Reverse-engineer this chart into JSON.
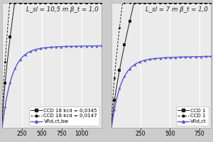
{
  "left": {
    "title": "L_sl = 10,5 m β_t = 1,0",
    "xlim": [
      0,
      1250
    ],
    "xticks": [
      250,
      500,
      750,
      1000
    ],
    "series": [
      {
        "label": "CCD 18 kcd = 0,0345",
        "style": "solid",
        "color": "#1a1a1a",
        "marker": "s"
      },
      {
        "label": "CCD 18 kcd = 0,0147",
        "style": "dashed",
        "color": "#1a1a1a",
        "marker": "o"
      },
      {
        "label": "VRd,ct,bw",
        "style": "solid",
        "color": "#5555cc",
        "marker": "^"
      }
    ]
  },
  "right": {
    "title": "L_sl = 7 m β_t = 1,0",
    "xlim": [
      0,
      850
    ],
    "xticks": [
      250,
      500,
      750
    ],
    "series": [
      {
        "label": "CCD 1",
        "style": "solid",
        "color": "#1a1a1a",
        "marker": "s"
      },
      {
        "label": "CCD 1",
        "style": "dashed",
        "color": "#1a1a1a",
        "marker": "o"
      },
      {
        "label": "VRd,ct",
        "style": "solid",
        "color": "#5555cc",
        "marker": "^"
      }
    ]
  },
  "ylim": [
    0.0,
    1.45
  ],
  "bg_color": "#ebebeb",
  "grid_color": "#ffffff",
  "fig_bg": "#cccccc",
  "legend_fontsize": 5.0,
  "title_fontsize": 6.2,
  "tick_fontsize": 5.5
}
